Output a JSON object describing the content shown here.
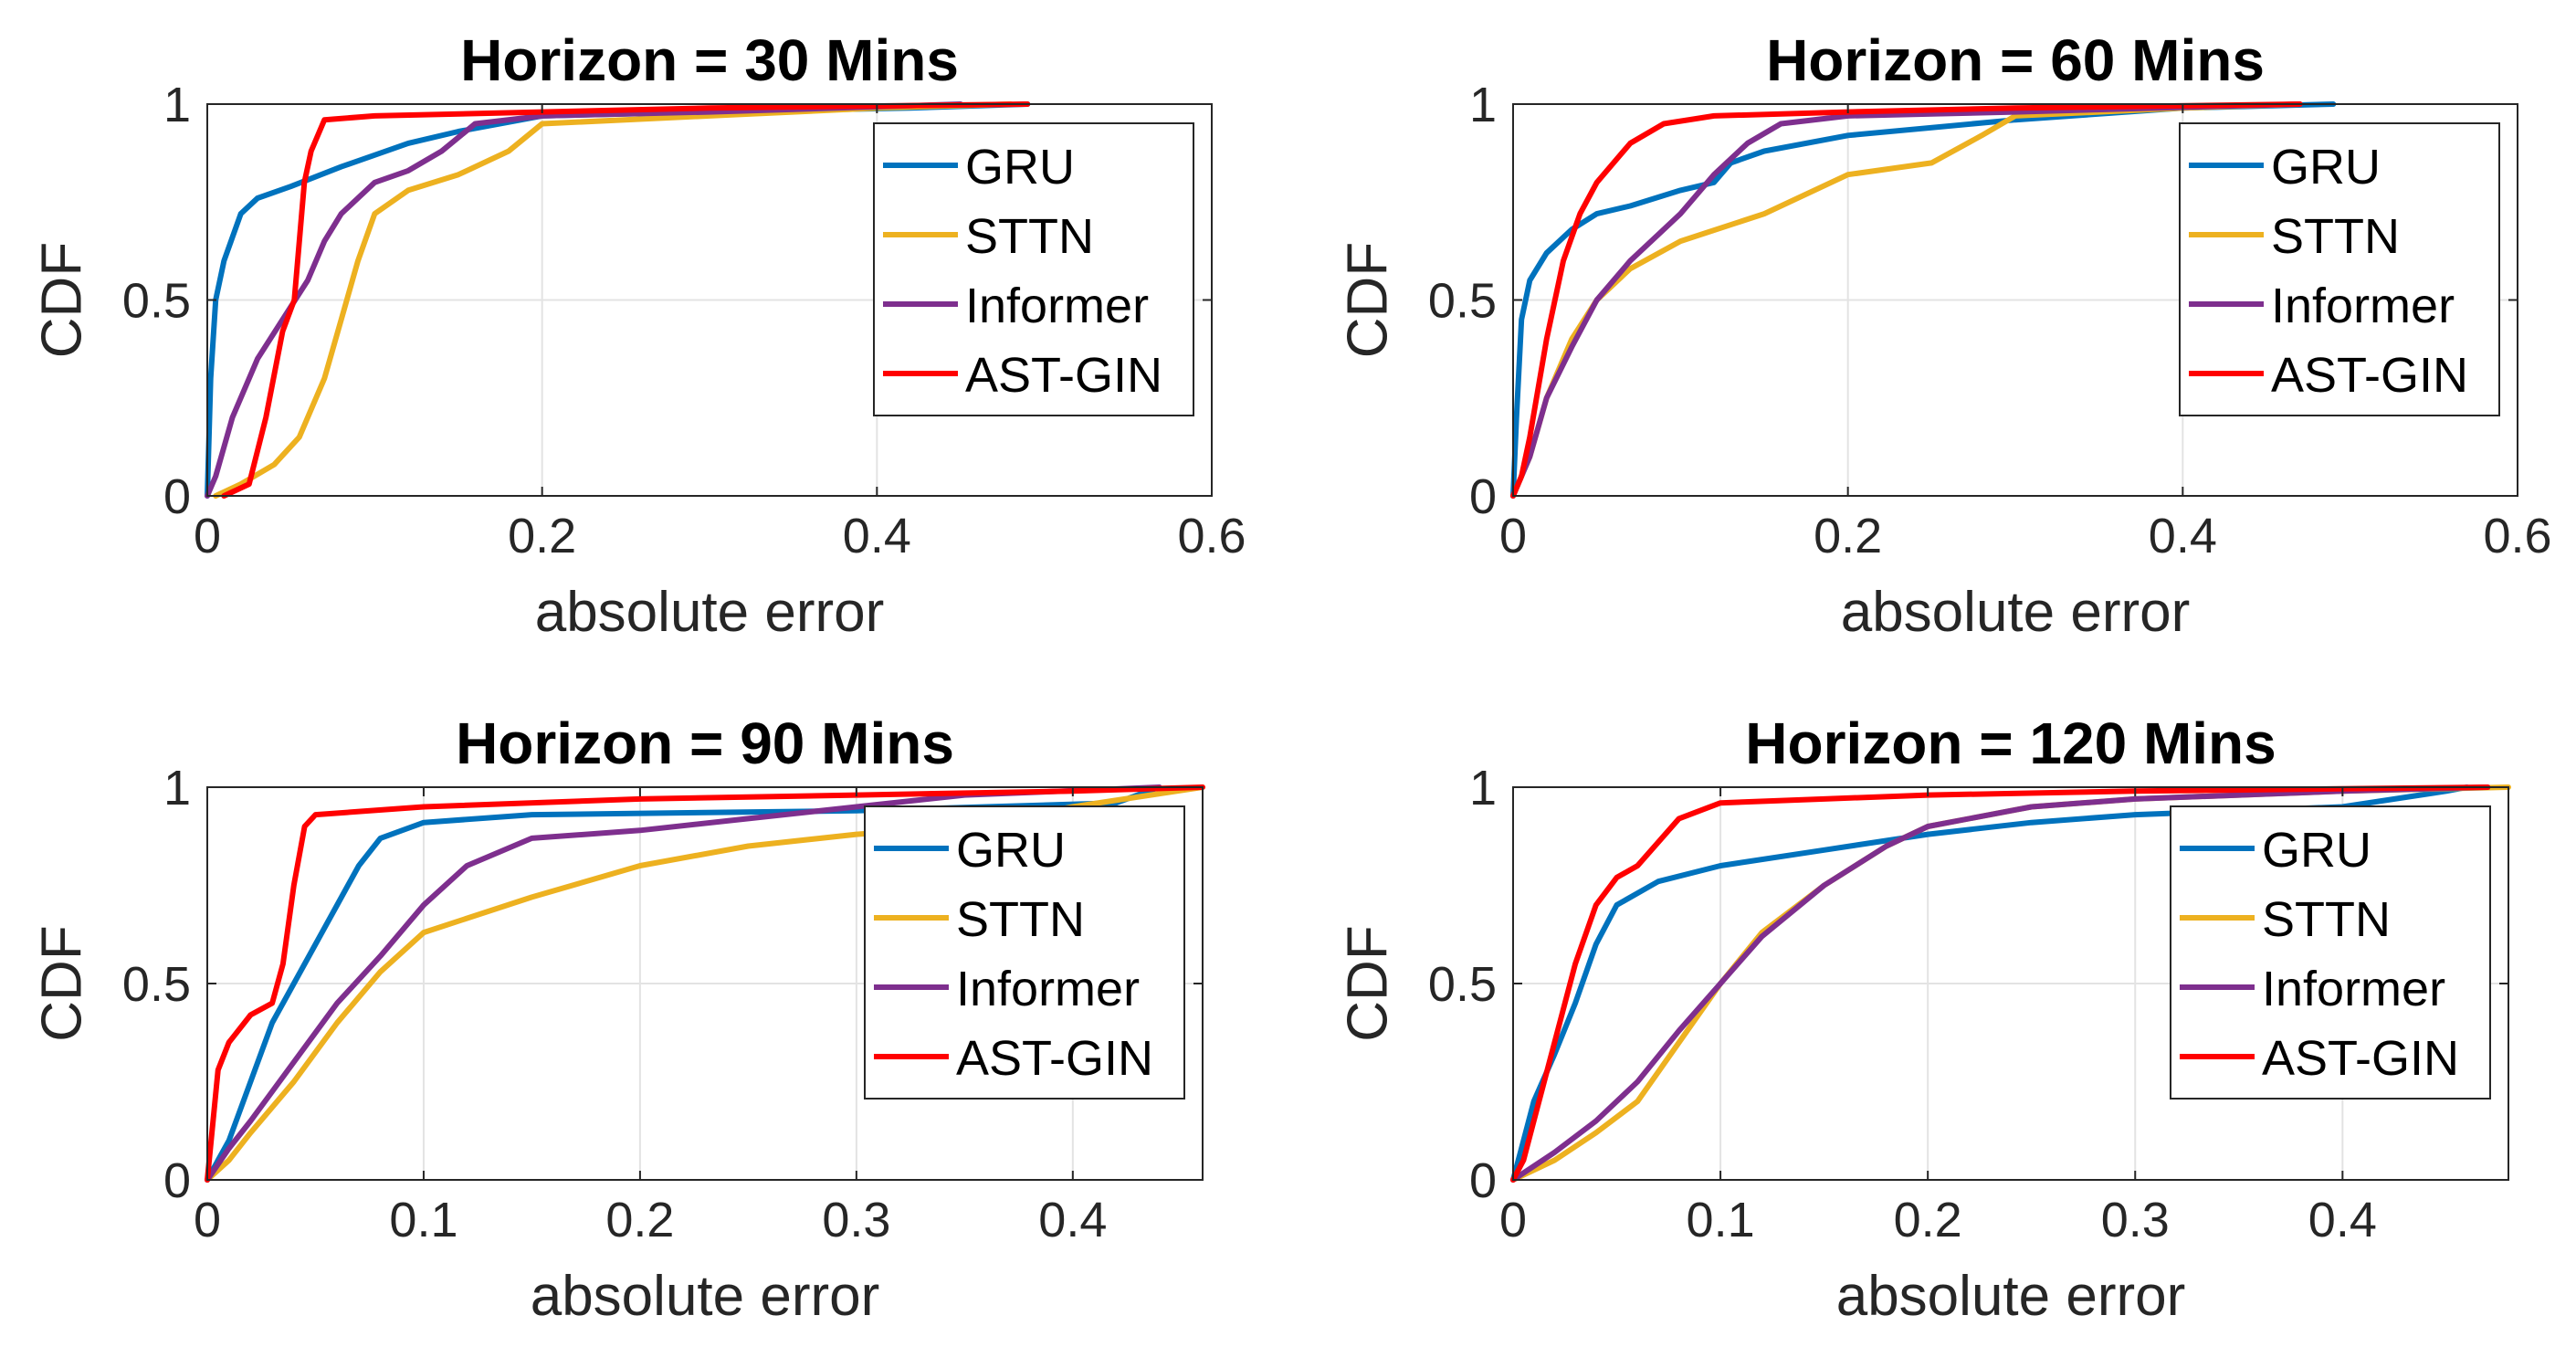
{
  "chart_data": [
    {
      "type": "line",
      "title": "Horizon = 30 Mins",
      "xlabel": "absolute error",
      "ylabel": "CDF",
      "xlim": [
        0,
        0.6
      ],
      "ylim": [
        0,
        1
      ],
      "xticks": [
        0,
        0.2,
        0.4,
        0.6
      ],
      "xticklabels": [
        "0",
        "0.2",
        "0.4",
        "0.6"
      ],
      "yticks": [
        0,
        0.5,
        1
      ],
      "yticklabels": [
        "0",
        "0.5",
        "1"
      ],
      "grid": true,
      "legend_position": "top-right",
      "series": [
        {
          "name": "GRU",
          "color": "#0072BD",
          "points": [
            [
              0,
              0
            ],
            [
              0.002,
              0.3
            ],
            [
              0.005,
              0.5
            ],
            [
              0.01,
              0.6
            ],
            [
              0.015,
              0.66
            ],
            [
              0.02,
              0.72
            ],
            [
              0.03,
              0.76
            ],
            [
              0.05,
              0.79
            ],
            [
              0.08,
              0.84
            ],
            [
              0.1,
              0.87
            ],
            [
              0.12,
              0.9
            ],
            [
              0.15,
              0.93
            ],
            [
              0.2,
              0.97
            ],
            [
              0.3,
              0.98
            ],
            [
              0.42,
              0.99
            ],
            [
              0.49,
              1
            ]
          ]
        },
        {
          "name": "STTN",
          "color": "#EDB120",
          "points": [
            [
              0.005,
              0
            ],
            [
              0.02,
              0.03
            ],
            [
              0.04,
              0.08
            ],
            [
              0.055,
              0.15
            ],
            [
              0.07,
              0.3
            ],
            [
              0.08,
              0.45
            ],
            [
              0.09,
              0.6
            ],
            [
              0.1,
              0.72
            ],
            [
              0.12,
              0.78
            ],
            [
              0.15,
              0.82
            ],
            [
              0.18,
              0.88
            ],
            [
              0.2,
              0.95
            ],
            [
              0.3,
              0.97
            ],
            [
              0.4,
              0.99
            ],
            [
              0.48,
              1
            ]
          ]
        },
        {
          "name": "Informer",
          "color": "#7E2F8E",
          "points": [
            [
              0,
              0
            ],
            [
              0.005,
              0.05
            ],
            [
              0.015,
              0.2
            ],
            [
              0.03,
              0.35
            ],
            [
              0.045,
              0.45
            ],
            [
              0.06,
              0.55
            ],
            [
              0.07,
              0.65
            ],
            [
              0.08,
              0.72
            ],
            [
              0.1,
              0.8
            ],
            [
              0.12,
              0.83
            ],
            [
              0.14,
              0.88
            ],
            [
              0.16,
              0.95
            ],
            [
              0.2,
              0.97
            ],
            [
              0.3,
              0.98
            ],
            [
              0.45,
              1
            ]
          ]
        },
        {
          "name": "AST-GIN",
          "color": "#FF0000",
          "points": [
            [
              0.01,
              0
            ],
            [
              0.025,
              0.03
            ],
            [
              0.035,
              0.2
            ],
            [
              0.045,
              0.42
            ],
            [
              0.052,
              0.5
            ],
            [
              0.058,
              0.8
            ],
            [
              0.062,
              0.88
            ],
            [
              0.07,
              0.96
            ],
            [
              0.1,
              0.97
            ],
            [
              0.2,
              0.98
            ],
            [
              0.3,
              0.99
            ],
            [
              0.49,
              1
            ]
          ]
        }
      ]
    },
    {
      "type": "line",
      "title": "Horizon = 60 Mins",
      "xlabel": "absolute error",
      "ylabel": "CDF",
      "xlim": [
        0,
        0.6
      ],
      "ylim": [
        0,
        1
      ],
      "xticks": [
        0,
        0.2,
        0.4,
        0.6
      ],
      "xticklabels": [
        "0",
        "0.2",
        "0.4",
        "0.6"
      ],
      "yticks": [
        0,
        0.5,
        1
      ],
      "yticklabels": [
        "0",
        "0.5",
        "1"
      ],
      "grid": true,
      "legend_position": "top-right",
      "series": [
        {
          "name": "GRU",
          "color": "#0072BD",
          "points": [
            [
              0,
              0
            ],
            [
              0.002,
              0.2
            ],
            [
              0.005,
              0.45
            ],
            [
              0.01,
              0.55
            ],
            [
              0.02,
              0.62
            ],
            [
              0.035,
              0.68
            ],
            [
              0.05,
              0.72
            ],
            [
              0.07,
              0.74
            ],
            [
              0.1,
              0.78
            ],
            [
              0.12,
              0.8
            ],
            [
              0.13,
              0.85
            ],
            [
              0.15,
              0.88
            ],
            [
              0.2,
              0.92
            ],
            [
              0.3,
              0.96
            ],
            [
              0.4,
              0.99
            ],
            [
              0.49,
              1
            ]
          ]
        },
        {
          "name": "STTN",
          "color": "#EDB120",
          "points": [
            [
              0,
              0
            ],
            [
              0.01,
              0.1
            ],
            [
              0.02,
              0.25
            ],
            [
              0.035,
              0.4
            ],
            [
              0.05,
              0.5
            ],
            [
              0.07,
              0.58
            ],
            [
              0.1,
              0.65
            ],
            [
              0.15,
              0.72
            ],
            [
              0.2,
              0.82
            ],
            [
              0.25,
              0.85
            ],
            [
              0.28,
              0.92
            ],
            [
              0.3,
              0.97
            ],
            [
              0.4,
              0.99
            ],
            [
              0.47,
              1
            ]
          ]
        },
        {
          "name": "Informer",
          "color": "#7E2F8E",
          "points": [
            [
              0,
              0
            ],
            [
              0.01,
              0.1
            ],
            [
              0.02,
              0.25
            ],
            [
              0.035,
              0.38
            ],
            [
              0.05,
              0.5
            ],
            [
              0.07,
              0.6
            ],
            [
              0.1,
              0.72
            ],
            [
              0.12,
              0.82
            ],
            [
              0.14,
              0.9
            ],
            [
              0.16,
              0.95
            ],
            [
              0.2,
              0.97
            ],
            [
              0.3,
              0.98
            ],
            [
              0.47,
              1
            ]
          ]
        },
        {
          "name": "AST-GIN",
          "color": "#FF0000",
          "points": [
            [
              0,
              0
            ],
            [
              0.005,
              0.05
            ],
            [
              0.01,
              0.15
            ],
            [
              0.02,
              0.4
            ],
            [
              0.03,
              0.6
            ],
            [
              0.04,
              0.72
            ],
            [
              0.05,
              0.8
            ],
            [
              0.07,
              0.9
            ],
            [
              0.09,
              0.95
            ],
            [
              0.12,
              0.97
            ],
            [
              0.2,
              0.98
            ],
            [
              0.3,
              0.99
            ],
            [
              0.47,
              1
            ]
          ]
        }
      ]
    },
    {
      "type": "line",
      "title": "Horizon = 90 Mins",
      "xlabel": "absolute error",
      "ylabel": "CDF",
      "xlim": [
        0,
        0.46
      ],
      "ylim": [
        0,
        1
      ],
      "xticks": [
        0,
        0.1,
        0.2,
        0.3,
        0.4
      ],
      "xticklabels": [
        "0",
        "0.1",
        "0.2",
        "0.3",
        "0.4"
      ],
      "yticks": [
        0,
        0.5,
        1
      ],
      "yticklabels": [
        "0",
        "0.5",
        "1"
      ],
      "grid": true,
      "legend_position": "top-right",
      "series": [
        {
          "name": "GRU",
          "color": "#0072BD",
          "points": [
            [
              0,
              0
            ],
            [
              0.005,
              0.05
            ],
            [
              0.01,
              0.1
            ],
            [
              0.02,
              0.25
            ],
            [
              0.03,
              0.4
            ],
            [
              0.04,
              0.5
            ],
            [
              0.05,
              0.6
            ],
            [
              0.06,
              0.7
            ],
            [
              0.07,
              0.8
            ],
            [
              0.08,
              0.87
            ],
            [
              0.1,
              0.91
            ],
            [
              0.15,
              0.93
            ],
            [
              0.3,
              0.94
            ],
            [
              0.42,
              0.96
            ],
            [
              0.44,
              1
            ]
          ]
        },
        {
          "name": "STTN",
          "color": "#EDB120",
          "points": [
            [
              0,
              0
            ],
            [
              0.01,
              0.05
            ],
            [
              0.02,
              0.12
            ],
            [
              0.04,
              0.25
            ],
            [
              0.06,
              0.4
            ],
            [
              0.08,
              0.53
            ],
            [
              0.1,
              0.63
            ],
            [
              0.15,
              0.72
            ],
            [
              0.2,
              0.8
            ],
            [
              0.25,
              0.85
            ],
            [
              0.3,
              0.88
            ],
            [
              0.35,
              0.9
            ],
            [
              0.4,
              0.95
            ],
            [
              0.46,
              1
            ]
          ]
        },
        {
          "name": "Informer",
          "color": "#7E2F8E",
          "points": [
            [
              0,
              0
            ],
            [
              0.01,
              0.08
            ],
            [
              0.02,
              0.15
            ],
            [
              0.04,
              0.3
            ],
            [
              0.06,
              0.45
            ],
            [
              0.08,
              0.57
            ],
            [
              0.1,
              0.7
            ],
            [
              0.12,
              0.8
            ],
            [
              0.15,
              0.87
            ],
            [
              0.2,
              0.89
            ],
            [
              0.25,
              0.92
            ],
            [
              0.3,
              0.95
            ],
            [
              0.35,
              0.98
            ],
            [
              0.44,
              1
            ]
          ]
        },
        {
          "name": "AST-GIN",
          "color": "#FF0000",
          "points": [
            [
              0,
              0
            ],
            [
              0.005,
              0.28
            ],
            [
              0.01,
              0.35
            ],
            [
              0.02,
              0.42
            ],
            [
              0.03,
              0.45
            ],
            [
              0.035,
              0.55
            ],
            [
              0.04,
              0.75
            ],
            [
              0.045,
              0.9
            ],
            [
              0.05,
              0.93
            ],
            [
              0.1,
              0.95
            ],
            [
              0.2,
              0.97
            ],
            [
              0.3,
              0.98
            ],
            [
              0.4,
              0.99
            ],
            [
              0.46,
              1
            ]
          ]
        }
      ]
    },
    {
      "type": "line",
      "title": "Horizon = 120 Mins",
      "xlabel": "absolute error",
      "ylabel": "CDF",
      "xlim": [
        0,
        0.48
      ],
      "ylim": [
        0,
        1
      ],
      "xticks": [
        0,
        0.1,
        0.2,
        0.3,
        0.4
      ],
      "xticklabels": [
        "0",
        "0.1",
        "0.2",
        "0.3",
        "0.4"
      ],
      "yticks": [
        0,
        0.5,
        1
      ],
      "yticklabels": [
        "0",
        "0.5",
        "1"
      ],
      "grid": true,
      "legend_position": "top-right",
      "series": [
        {
          "name": "GRU",
          "color": "#0072BD",
          "points": [
            [
              0,
              0
            ],
            [
              0.005,
              0.1
            ],
            [
              0.01,
              0.2
            ],
            [
              0.02,
              0.32
            ],
            [
              0.03,
              0.45
            ],
            [
              0.04,
              0.6
            ],
            [
              0.05,
              0.7
            ],
            [
              0.07,
              0.76
            ],
            [
              0.1,
              0.8
            ],
            [
              0.15,
              0.84
            ],
            [
              0.2,
              0.88
            ],
            [
              0.25,
              0.91
            ],
            [
              0.3,
              0.93
            ],
            [
              0.4,
              0.95
            ],
            [
              0.45,
              0.99
            ],
            [
              0.46,
              1
            ]
          ]
        },
        {
          "name": "STTN",
          "color": "#EDB120",
          "points": [
            [
              0,
              0
            ],
            [
              0.02,
              0.05
            ],
            [
              0.04,
              0.12
            ],
            [
              0.06,
              0.2
            ],
            [
              0.08,
              0.35
            ],
            [
              0.1,
              0.5
            ],
            [
              0.12,
              0.63
            ],
            [
              0.15,
              0.75
            ],
            [
              0.18,
              0.85
            ],
            [
              0.2,
              0.9
            ],
            [
              0.25,
              0.95
            ],
            [
              0.3,
              0.97
            ],
            [
              0.4,
              0.99
            ],
            [
              0.48,
              1
            ]
          ]
        },
        {
          "name": "Informer",
          "color": "#7E2F8E",
          "points": [
            [
              0,
              0
            ],
            [
              0.02,
              0.07
            ],
            [
              0.04,
              0.15
            ],
            [
              0.06,
              0.25
            ],
            [
              0.08,
              0.38
            ],
            [
              0.1,
              0.5
            ],
            [
              0.12,
              0.62
            ],
            [
              0.15,
              0.75
            ],
            [
              0.18,
              0.85
            ],
            [
              0.2,
              0.9
            ],
            [
              0.25,
              0.95
            ],
            [
              0.3,
              0.97
            ],
            [
              0.4,
              0.99
            ],
            [
              0.47,
              1
            ]
          ]
        },
        {
          "name": "AST-GIN",
          "color": "#FF0000",
          "points": [
            [
              0,
              0
            ],
            [
              0.005,
              0.05
            ],
            [
              0.01,
              0.15
            ],
            [
              0.02,
              0.35
            ],
            [
              0.03,
              0.55
            ],
            [
              0.04,
              0.7
            ],
            [
              0.05,
              0.77
            ],
            [
              0.06,
              0.8
            ],
            [
              0.08,
              0.92
            ],
            [
              0.1,
              0.96
            ],
            [
              0.15,
              0.97
            ],
            [
              0.2,
              0.98
            ],
            [
              0.3,
              0.99
            ],
            [
              0.47,
              1
            ]
          ]
        }
      ]
    }
  ]
}
